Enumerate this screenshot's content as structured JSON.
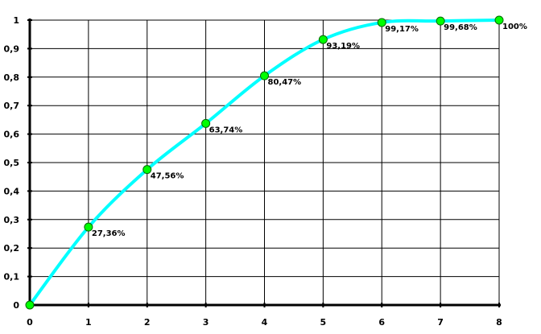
{
  "chart_data": {
    "type": "line",
    "title": "",
    "xlabel": "",
    "ylabel": "",
    "x": [
      0,
      1,
      2,
      3,
      4,
      5,
      6,
      7,
      8
    ],
    "series": [
      {
        "values": [
          0,
          0.2736,
          0.4756,
          0.6374,
          0.8047,
          0.9319,
          0.9917,
          0.9968,
          1.0
        ]
      }
    ],
    "data_labels": [
      "",
      "27,36%",
      "47,56%",
      "63,74%",
      "80,47%",
      "93,19%",
      "99,17%",
      "99,68%",
      "100%"
    ],
    "xlim": [
      0,
      8
    ],
    "ylim": [
      0,
      1
    ],
    "x_ticks": [
      "0",
      "1",
      "2",
      "3",
      "4",
      "5",
      "6",
      "7",
      "8"
    ],
    "y_ticks": [
      "0",
      "0,1",
      "0,2",
      "0,3",
      "0,4",
      "0,5",
      "0,6",
      "0,7",
      "0,8",
      "0,9",
      "1"
    ],
    "grid": true,
    "legend": "none",
    "colors": {
      "line": "#00ffff",
      "marker_fill": "#00ff00",
      "marker_stroke": "#006600",
      "grid": "#000000",
      "axis": "#000000"
    }
  }
}
